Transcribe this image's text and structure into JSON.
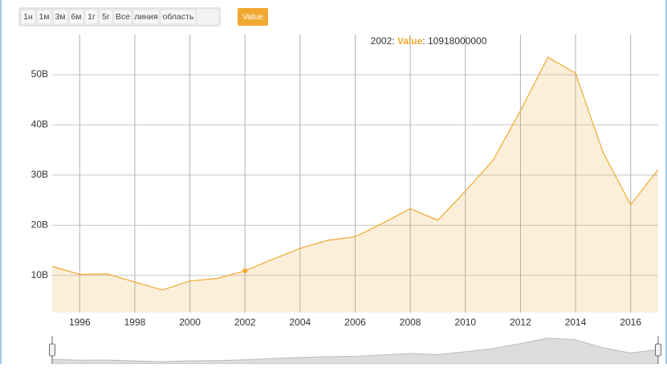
{
  "controls": [
    "1н",
    "1м",
    "3м",
    "6м",
    "1г",
    "5г",
    "Все",
    "линия",
    "область"
  ],
  "chart_data": {
    "type": "area",
    "x": [
      1995,
      1996,
      1997,
      1998,
      1999,
      2000,
      2001,
      2002,
      2003,
      2004,
      2005,
      2006,
      2007,
      2008,
      2009,
      2010,
      2011,
      2012,
      2013,
      2014,
      2015,
      2016,
      2017
    ],
    "series": [
      {
        "name": "Value",
        "color": "#f0a830",
        "values": [
          11800000000,
          10200000000,
          10300000000,
          8700000000,
          7100000000,
          8900000000,
          9400000000,
          10918000000,
          13200000000,
          15400000000,
          17000000000,
          17700000000,
          20400000000,
          23300000000,
          21000000000,
          26800000000,
          32900000000,
          42800000000,
          53500000000,
          50300000000,
          34500000000,
          24100000000,
          31100000000
        ]
      }
    ],
    "xlim": [
      1995,
      2017
    ],
    "xticks": [
      1996,
      1998,
      2000,
      2002,
      2004,
      2006,
      2008,
      2010,
      2012,
      2014,
      2016
    ],
    "ylim": [
      2600000000,
      58000000000
    ],
    "yticks": [
      {
        "value": 10000000000,
        "label": "10B"
      },
      {
        "value": 20000000000,
        "label": "20B"
      },
      {
        "value": 30000000000,
        "label": "30B"
      },
      {
        "value": 40000000000,
        "label": "40B"
      },
      {
        "value": 50000000000,
        "label": "50B"
      }
    ],
    "grid": true
  }
}
